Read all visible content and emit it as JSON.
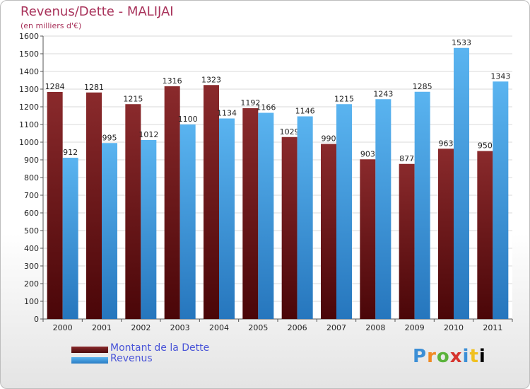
{
  "chart_data": {
    "type": "bar",
    "title": "Revenus/Dette - MALIJAI",
    "subtitle": "(en milliers d'€)",
    "categories": [
      "2000",
      "2001",
      "2002",
      "2003",
      "2004",
      "2005",
      "2006",
      "2007",
      "2008",
      "2009",
      "2010",
      "2011"
    ],
    "series": [
      {
        "name": "Montant de la Dette",
        "color": "#7a1c1e",
        "values": [
          1284,
          1281,
          1215,
          1316,
          1323,
          1192,
          1029,
          990,
          903,
          877,
          963,
          950
        ]
      },
      {
        "name": "Revenus",
        "color": "#4aa3e6",
        "values": [
          912,
          995,
          1012,
          1100,
          1134,
          1166,
          1146,
          1215,
          1243,
          1285,
          1533,
          1343
        ]
      }
    ],
    "ylim": [
      0,
      1600
    ],
    "yticks": [
      0,
      100,
      200,
      300,
      400,
      500,
      600,
      700,
      800,
      900,
      1000,
      1100,
      1200,
      1300,
      1400,
      1500,
      1600
    ],
    "grid": true,
    "legend": "bottom-left"
  },
  "logo": {
    "letters": [
      "P",
      "r",
      "o",
      "x",
      "i",
      "t",
      "i"
    ]
  }
}
